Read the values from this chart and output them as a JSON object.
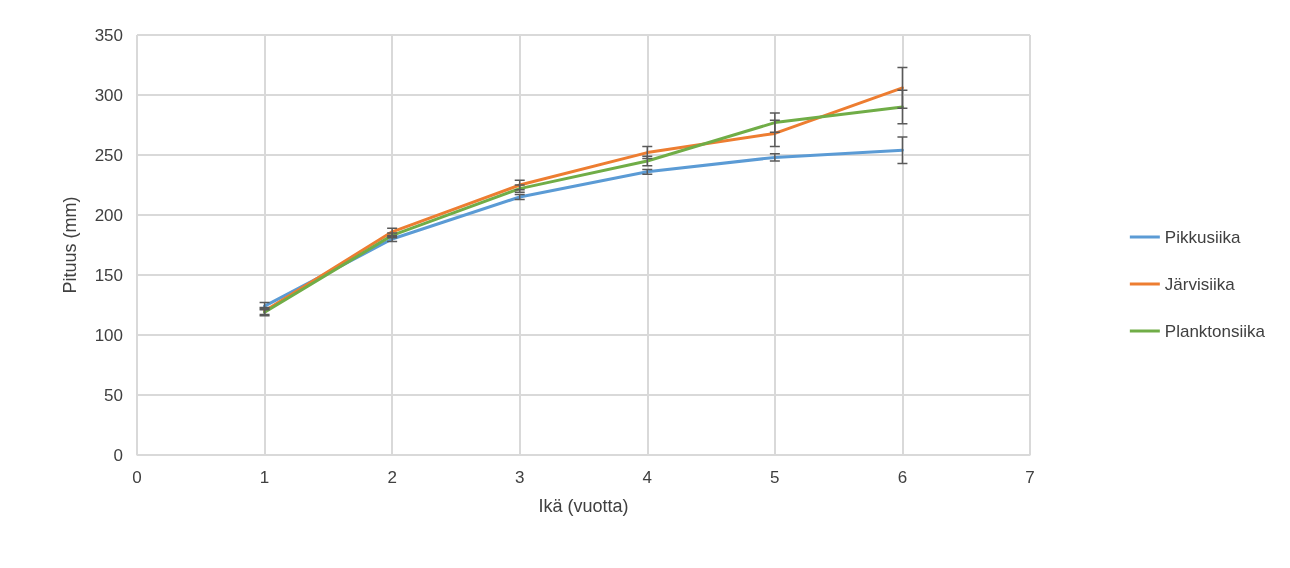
{
  "chart_data": {
    "type": "line",
    "xlabel": "Ikä (vuotta)",
    "ylabel": "Pituus (mm)",
    "x": [
      1,
      2,
      3,
      4,
      5,
      6
    ],
    "series": [
      {
        "name": "Pikkusiika",
        "color": "#5b9bd5",
        "values": [
          124,
          180,
          215,
          236,
          248,
          254
        ],
        "errors": [
          3,
          2,
          2,
          2,
          3,
          11
        ]
      },
      {
        "name": "Järvisiika",
        "color": "#ed7d31",
        "values": [
          120,
          186,
          225,
          252,
          268,
          306
        ],
        "errors": [
          3,
          3,
          4,
          5,
          11,
          17
        ]
      },
      {
        "name": "Planktonsiika",
        "color": "#70ad47",
        "values": [
          119,
          183,
          222,
          245,
          277,
          290
        ],
        "errors": [
          3,
          2,
          3,
          4,
          8,
          14
        ]
      }
    ],
    "xlim": [
      0,
      7
    ],
    "xticks": [
      0,
      1,
      2,
      3,
      4,
      5,
      6,
      7
    ],
    "ylim": [
      0,
      350
    ],
    "yticks": [
      0,
      50,
      100,
      150,
      200,
      250,
      300,
      350
    ],
    "grid": true,
    "legend": "right",
    "line_style": "solid"
  }
}
